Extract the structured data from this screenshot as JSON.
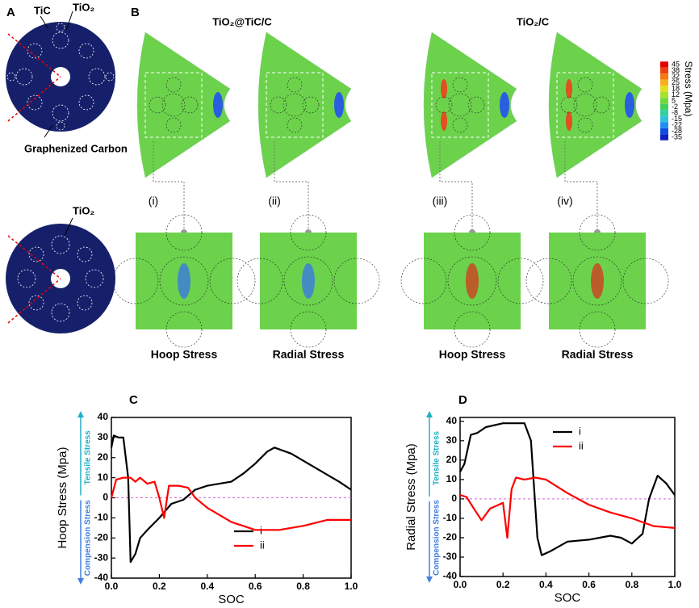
{
  "panels": {
    "a": "A",
    "b": "B",
    "c": "C",
    "d": "D"
  },
  "panel_a": {
    "tic": "TiC",
    "tio2_top": "TiO₂",
    "carbon": "Graphenized Carbon",
    "tio2_bottom": "TiO₂"
  },
  "panel_b": {
    "group1": "TiO₂@TiC/C",
    "group2": "TiO₂/C",
    "labels": [
      "(i)",
      "(ii)",
      "(iii)",
      "(iv)"
    ],
    "bottom_labels": [
      "Hoop Stress",
      "Radial Stress",
      "Hoop Stress",
      "Radial Stress"
    ],
    "colorbar": {
      "title": "Stress (Mpa)",
      "ticks": [
        45,
        38,
        32,
        25,
        18,
        12,
        5,
        -2,
        -8,
        -15,
        -22,
        -28,
        -35
      ],
      "colors": [
        "#e00000",
        "#f04010",
        "#f57a10",
        "#f5b020",
        "#e0e020",
        "#a8e030",
        "#70d840",
        "#40d060",
        "#30d0a0",
        "#30c0e0",
        "#2090f0",
        "#1050e0",
        "#1020c0"
      ]
    }
  },
  "chart_data": [
    {
      "type": "line",
      "xlabel": "SOC",
      "ylabel": "Hoop Stress (Mpa)",
      "side_top": "Tensile Stress",
      "side_bottom": "Compension Stress",
      "xlim": [
        0,
        1
      ],
      "xticks": [
        {
          "value": 0,
          "label": "0.0"
        },
        0.2,
        0.4,
        0.6,
        0.8,
        {
          "value": 1,
          "label": "1.0"
        }
      ],
      "ylim": [
        -40,
        40
      ],
      "yticks": [
        -40,
        -30,
        -20,
        -10,
        0,
        10,
        20,
        30,
        40
      ],
      "series": [
        {
          "name": "i",
          "color": "#000000",
          "x": [
            0,
            0.01,
            0.03,
            0.05,
            0.07,
            0.08,
            0.1,
            0.12,
            0.15,
            0.2,
            0.25,
            0.3,
            0.35,
            0.4,
            0.45,
            0.5,
            0.55,
            0.6,
            0.65,
            0.68,
            0.75,
            0.85,
            0.95,
            1.0
          ],
          "values": [
            25,
            31,
            30,
            30,
            10,
            -32,
            -28,
            -20,
            -16,
            -10,
            -3,
            -1,
            4,
            6,
            7,
            8,
            12,
            17,
            23,
            25,
            22,
            15,
            8,
            4
          ]
        },
        {
          "name": "ii",
          "color": "#ff0000",
          "x": [
            0,
            0.02,
            0.05,
            0.08,
            0.1,
            0.12,
            0.15,
            0.18,
            0.2,
            0.22,
            0.24,
            0.28,
            0.32,
            0.35,
            0.4,
            0.5,
            0.6,
            0.7,
            0.8,
            0.9,
            1.0
          ],
          "values": [
            0,
            9,
            10,
            10,
            8,
            10,
            7,
            8,
            0,
            -10,
            6,
            6,
            5,
            0,
            -5,
            -12,
            -16,
            -16,
            -14,
            -11,
            -11
          ]
        }
      ]
    },
    {
      "type": "line",
      "xlabel": "SOC",
      "ylabel": "Radial Stress (Mpa)",
      "side_top": "Tensile Stress",
      "side_bottom": "Compension Stress",
      "xlim": [
        0,
        1
      ],
      "xticks": [
        {
          "value": 0,
          "label": "0.0"
        },
        0.2,
        0.4,
        0.6,
        0.8,
        {
          "value": 1,
          "label": "1.0"
        }
      ],
      "ylim": [
        -40,
        42
      ],
      "yticks": [
        -40,
        -30,
        -20,
        -10,
        0,
        10,
        20,
        30,
        40
      ],
      "series": [
        {
          "name": "i",
          "color": "#000000",
          "x": [
            0,
            0.02,
            0.05,
            0.08,
            0.12,
            0.2,
            0.3,
            0.33,
            0.36,
            0.38,
            0.42,
            0.5,
            0.6,
            0.7,
            0.75,
            0.8,
            0.85,
            0.88,
            0.92,
            0.96,
            1.0
          ],
          "values": [
            14,
            18,
            33,
            34,
            37,
            39,
            39,
            30,
            -20,
            -29,
            -27,
            -22,
            -21,
            -19,
            -20,
            -23,
            -18,
            0,
            12,
            8,
            2
          ]
        },
        {
          "name": "ii",
          "color": "#ff0000",
          "x": [
            0,
            0.03,
            0.07,
            0.1,
            0.14,
            0.2,
            0.22,
            0.24,
            0.26,
            0.3,
            0.35,
            0.4,
            0.5,
            0.6,
            0.7,
            0.8,
            0.9,
            1.0
          ],
          "values": [
            2,
            1,
            -6,
            -11,
            -5,
            -2,
            -20,
            5,
            11,
            10,
            11,
            10,
            3,
            -3,
            -7,
            -10,
            -14,
            -15
          ]
        }
      ]
    }
  ]
}
